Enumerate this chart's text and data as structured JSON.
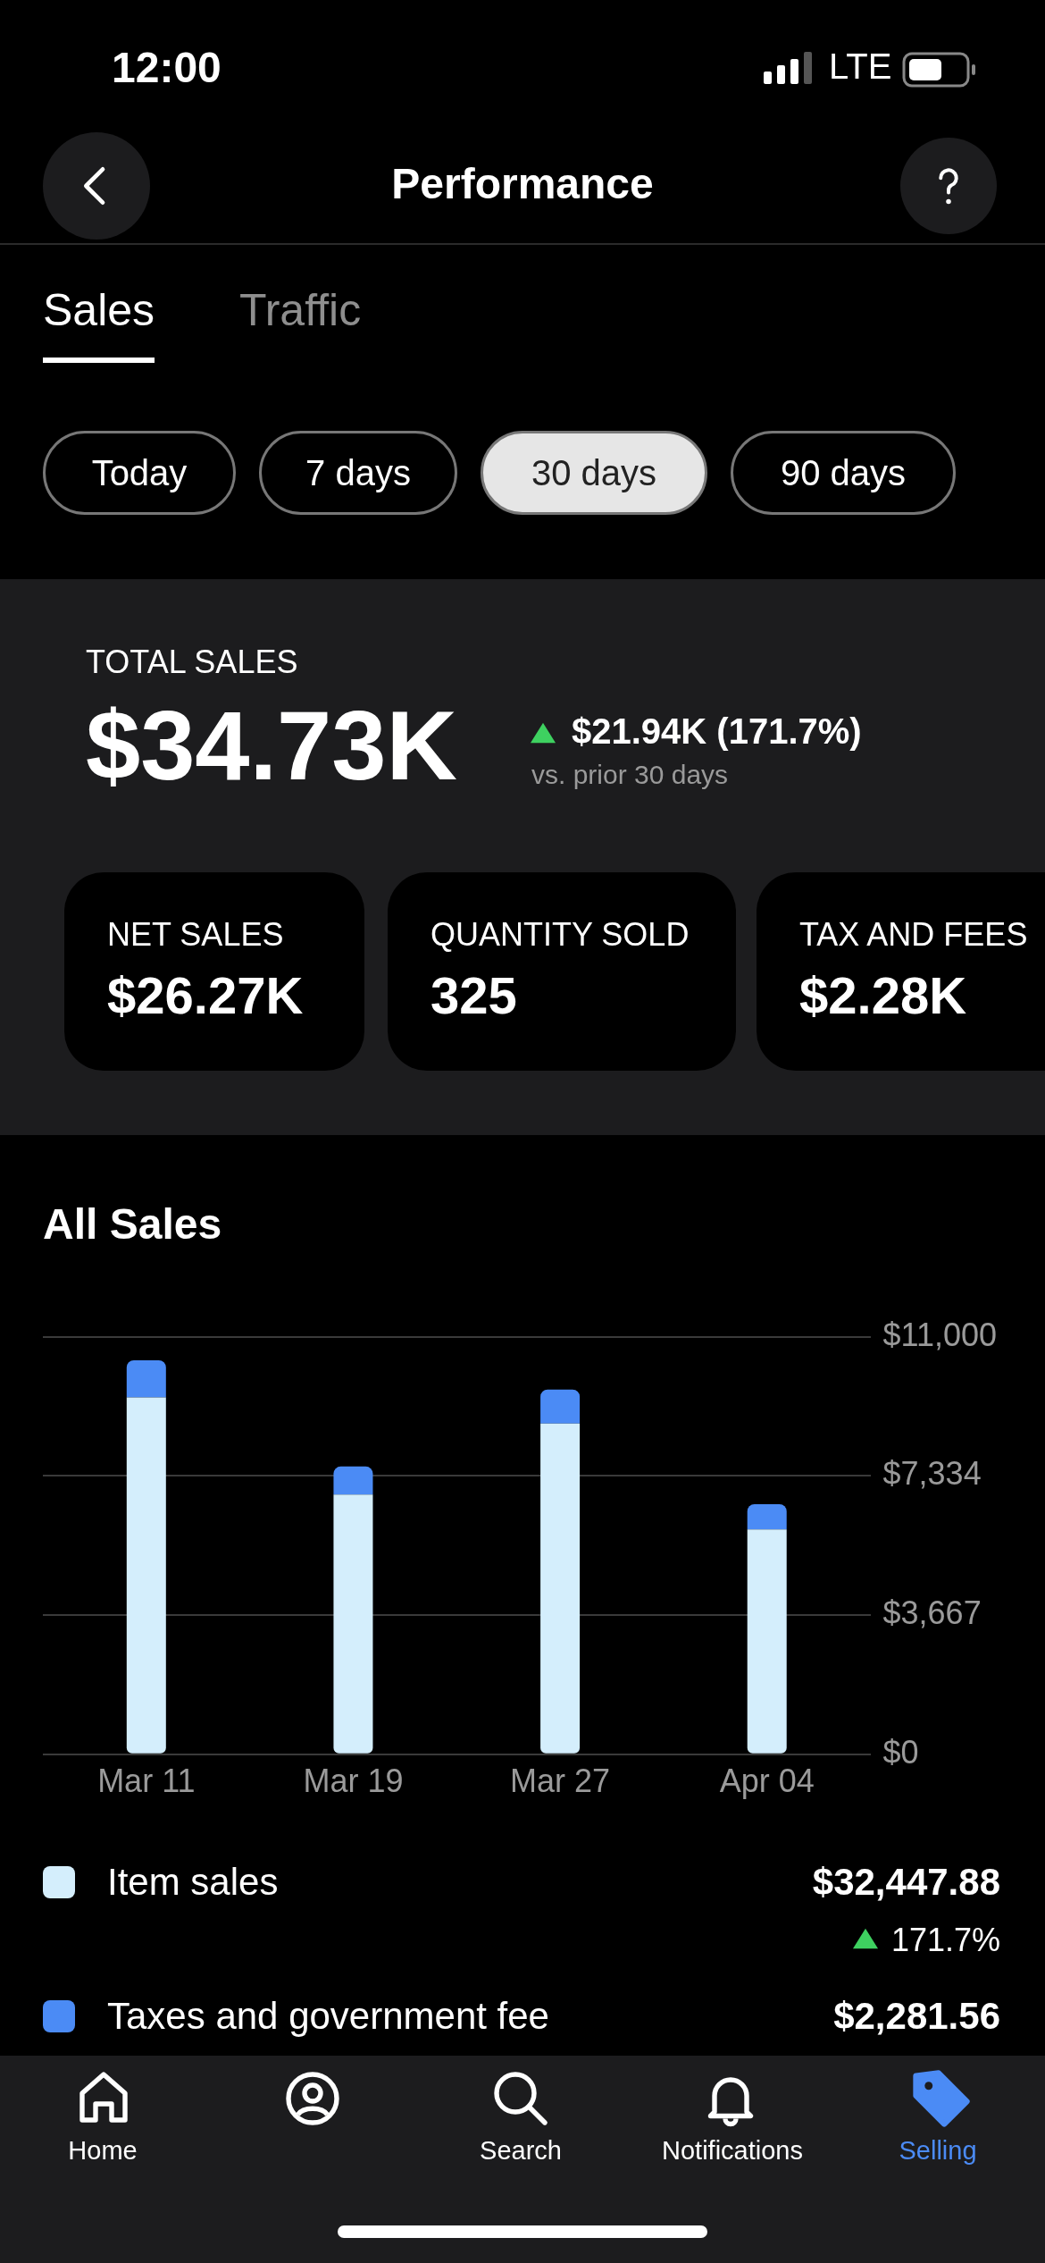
{
  "chart_data": {
    "type": "bar",
    "title": "All Sales",
    "stacked": true,
    "categories": [
      "Mar 11",
      "Mar 19",
      "Mar 27",
      "Apr 04"
    ],
    "series": [
      {
        "name": "Item sales",
        "color": "#d4eefc",
        "values": [
          9400,
          6840,
          8710,
          5920
        ]
      },
      {
        "name": "Taxes and government fee",
        "color": "#4b8bf5",
        "values": [
          980,
          740,
          900,
          670
        ]
      }
    ],
    "ylim": [
      0,
      11000
    ],
    "yticks": [
      {
        "value": 0,
        "label": "$0"
      },
      {
        "value": 3667,
        "label": "$3,667"
      },
      {
        "value": 7334,
        "label": "$7,334"
      },
      {
        "value": 11000,
        "label": "$11,000"
      }
    ],
    "grid": "y",
    "legend": "bottom",
    "annotations": [
      "12:00",
      "LTE",
      "Performance",
      "Sales",
      "Traffic",
      "Today",
      "7 days",
      "30 days",
      "90 days",
      "TOTAL SALES",
      "$34.73K",
      "$21.94K (171.7%)",
      "vs. prior 30 days",
      "NET SALES",
      "$26.27K",
      "QUANTITY SOLD",
      "325",
      "TAX AND FEES",
      "$2.28K",
      "$32,447.88",
      "171.7%",
      "$2,281.56",
      "Home",
      "Search",
      "Notifications",
      "Selling"
    ]
  }
}
